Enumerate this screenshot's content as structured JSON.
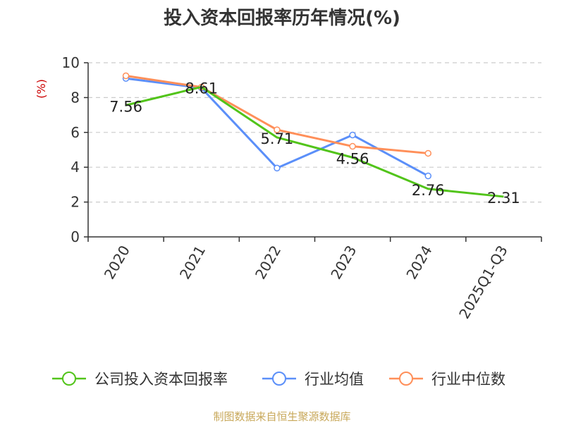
{
  "chart_data": {
    "type": "line",
    "title": "投入资本回报率历年情况(%)",
    "xlabel": "",
    "ylabel": "(%)",
    "ylim": [
      0,
      10
    ],
    "yticks": [
      0,
      2,
      4,
      6,
      8,
      10
    ],
    "grid": true,
    "legend_position": "bottom",
    "categories": [
      "2020",
      "2021",
      "2022",
      "2023",
      "2024",
      "2025Q1-Q3"
    ],
    "series": [
      {
        "name": "公司投入资本回报率",
        "color": "#52c41a",
        "values": [
          7.56,
          8.61,
          5.71,
          4.56,
          2.76,
          2.31
        ],
        "labels": [
          "7.56",
          "8.61",
          "5.71",
          "4.56",
          "2.76",
          "2.31"
        ]
      },
      {
        "name": "行业均值",
        "color": "#5b8ff9",
        "values": [
          9.1,
          8.55,
          3.95,
          5.85,
          3.5,
          null
        ]
      },
      {
        "name": "行业中位数",
        "color": "#ff8f59",
        "values": [
          9.25,
          8.6,
          6.15,
          5.2,
          4.8,
          null
        ]
      }
    ]
  },
  "source": "制图数据来自恒生聚源数据库",
  "colors": {
    "axis": "#333333",
    "grid": "#cccccc",
    "ylabel": "#cc0000",
    "source": "#c8a85a"
  }
}
